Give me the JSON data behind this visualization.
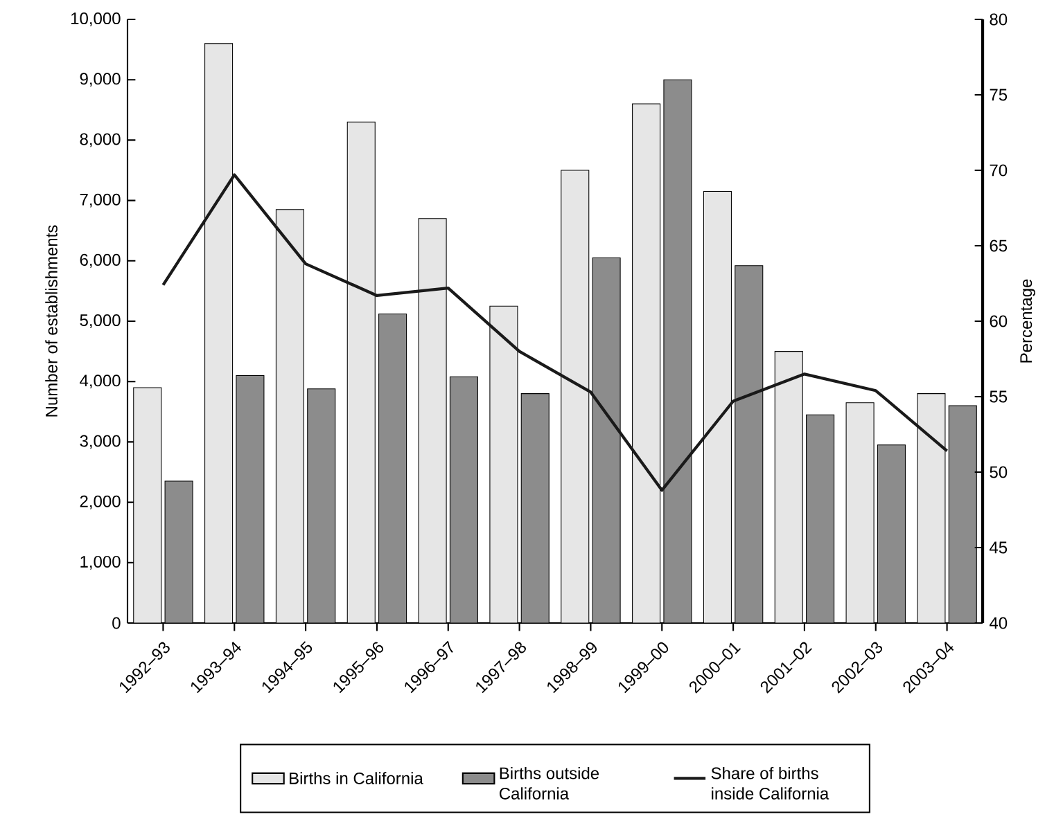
{
  "chart_data": {
    "type": "bar",
    "categories": [
      "1992–93",
      "1993–94",
      "1994–95",
      "1995–96",
      "1996–97",
      "1997–98",
      "1998–99",
      "1999–00",
      "2000–01",
      "2001–02",
      "2002–03",
      "2003–04"
    ],
    "series": [
      {
        "name": "Births in California",
        "color": "#e6e6e6",
        "values": [
          3900,
          9600,
          6850,
          8300,
          6700,
          5250,
          7500,
          8600,
          7150,
          4500,
          3650,
          3800
        ]
      },
      {
        "name": "Births outside California",
        "color": "#8c8c8c",
        "values": [
          2350,
          4100,
          3880,
          5120,
          4080,
          3800,
          6050,
          9000,
          5920,
          3450,
          2950,
          3600
        ]
      },
      {
        "name": "Share of births inside California",
        "type": "line",
        "axis": "y2",
        "color": "#1a1a1a",
        "values": [
          62.4,
          69.7,
          63.8,
          61.7,
          62.2,
          58.0,
          55.3,
          48.8,
          54.7,
          56.5,
          55.4,
          51.4
        ]
      }
    ],
    "ylabel": "Number of establishments",
    "y2label": "Percentage",
    "ylim": [
      0,
      10000
    ],
    "yticks": [
      {
        "value": 0,
        "label": "0"
      },
      {
        "value": 1000,
        "label": "1,000"
      },
      {
        "value": 2000,
        "label": "2,000"
      },
      {
        "value": 3000,
        "label": "3,000"
      },
      {
        "value": 4000,
        "label": "4,000"
      },
      {
        "value": 5000,
        "label": "5,000"
      },
      {
        "value": 6000,
        "label": "6,000"
      },
      {
        "value": 7000,
        "label": "7,000"
      },
      {
        "value": 8000,
        "label": "8,000"
      },
      {
        "value": 9000,
        "label": "9,000"
      },
      {
        "value": 10000,
        "label": "10,000"
      }
    ],
    "y2lim": [
      40,
      80
    ],
    "y2ticks": [
      40,
      45,
      50,
      55,
      60,
      65,
      70,
      75,
      80
    ],
    "legend": "bottom",
    "grid": false,
    "marker": "none"
  }
}
